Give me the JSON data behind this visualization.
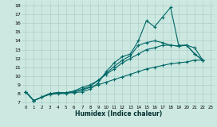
{
  "title": "",
  "xlabel": "Humidex (Indice chaleur)",
  "ylabel": "",
  "background_color": "#cce8e0",
  "grid_color": "#aad0c8",
  "line_color": "#006868",
  "xlim": [
    -0.5,
    23.5
  ],
  "ylim": [
    6.8,
    18.5
  ],
  "xticks": [
    0,
    1,
    2,
    3,
    4,
    5,
    6,
    7,
    8,
    9,
    10,
    11,
    12,
    13,
    14,
    15,
    16,
    17,
    18,
    19,
    20,
    21,
    22,
    23
  ],
  "yticks": [
    7,
    8,
    9,
    10,
    11,
    12,
    13,
    14,
    15,
    16,
    17,
    18
  ],
  "line1_x": [
    0,
    1,
    2,
    3,
    4,
    5,
    6,
    7,
    8,
    9,
    10,
    11,
    12,
    13,
    14,
    15,
    16,
    17,
    18,
    19,
    20,
    21,
    22
  ],
  "line1_y": [
    8.2,
    7.2,
    7.6,
    8.0,
    8.1,
    8.1,
    8.1,
    8.2,
    8.5,
    9.2,
    10.5,
    11.5,
    12.2,
    12.5,
    14.0,
    16.3,
    15.6,
    16.7,
    17.8,
    13.5,
    13.5,
    13.2,
    11.8
  ],
  "line2_x": [
    0,
    1,
    2,
    3,
    4,
    5,
    6,
    7,
    8,
    9,
    10,
    11,
    12,
    13,
    14,
    15,
    16,
    17,
    18,
    19,
    20,
    21,
    22
  ],
  "line2_y": [
    8.2,
    7.2,
    7.6,
    8.0,
    8.1,
    8.1,
    8.2,
    8.5,
    8.8,
    9.5,
    10.3,
    11.1,
    11.8,
    12.3,
    13.5,
    13.8,
    14.0,
    13.8,
    13.5,
    13.4,
    13.5,
    12.5,
    11.8
  ],
  "line3_x": [
    0,
    1,
    2,
    3,
    4,
    5,
    6,
    7,
    8,
    9,
    10,
    11,
    12,
    13,
    14,
    15,
    16,
    17,
    18,
    19,
    20,
    21,
    22
  ],
  "line3_y": [
    8.2,
    7.2,
    7.6,
    8.0,
    8.1,
    8.1,
    8.3,
    8.7,
    9.0,
    9.5,
    10.2,
    10.8,
    11.5,
    12.0,
    12.5,
    13.0,
    13.2,
    13.5,
    13.5,
    13.4,
    13.5,
    12.5,
    11.8
  ],
  "line4_x": [
    0,
    1,
    2,
    3,
    4,
    5,
    6,
    7,
    8,
    9,
    10,
    11,
    12,
    13,
    14,
    15,
    16,
    17,
    18,
    19,
    20,
    21,
    22
  ],
  "line4_y": [
    8.2,
    7.2,
    7.6,
    7.9,
    8.0,
    8.0,
    8.2,
    8.4,
    8.7,
    9.0,
    9.3,
    9.6,
    9.9,
    10.2,
    10.5,
    10.8,
    11.0,
    11.2,
    11.4,
    11.5,
    11.6,
    11.8,
    11.8
  ]
}
